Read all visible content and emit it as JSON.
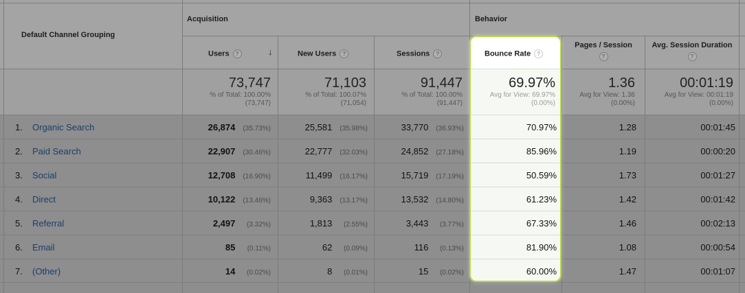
{
  "headers": {
    "dimension": "Default Channel Grouping",
    "acquisition": "Acquisition",
    "behavior": "Behavior",
    "users": "Users",
    "new_users": "New Users",
    "sessions": "Sessions",
    "bounce_rate": "Bounce Rate",
    "pages_session": "Pages / Session",
    "avg_duration": "Avg. Session Duration",
    "help_glyph": "?",
    "sort_glyph": "↓"
  },
  "totals": {
    "users": {
      "value": "73,747",
      "line1": "% of Total: 100.00%",
      "line2": "(73,747)"
    },
    "new_users": {
      "value": "71,103",
      "line1": "% of Total: 100.07%",
      "line2": "(71,054)"
    },
    "sessions": {
      "value": "91,447",
      "line1": "% of Total: 100.00%",
      "line2": "(91,447)"
    },
    "bounce_rate": {
      "value": "69.97%",
      "line1": "Avg for View: 69.97%",
      "line2": "(0.00%)"
    },
    "pages_session": {
      "value": "1.36",
      "line1": "Avg for View: 1.36",
      "line2": "(0.00%)"
    },
    "avg_duration": {
      "value": "00:01:19",
      "line1": "Avg for View: 00:01:19",
      "line2": "(0.00%)"
    }
  },
  "rows": [
    {
      "idx": "1.",
      "channel": "Organic Search",
      "users": "26,874",
      "users_pct": "(35.73%)",
      "new_users": "25,581",
      "new_users_pct": "(35.98%)",
      "sessions": "33,770",
      "sessions_pct": "(36.93%)",
      "bounce": "70.97%",
      "pages": "1.28",
      "duration": "00:01:45"
    },
    {
      "idx": "2.",
      "channel": "Paid Search",
      "users": "22,907",
      "users_pct": "(30.46%)",
      "new_users": "22,777",
      "new_users_pct": "(32.03%)",
      "sessions": "24,852",
      "sessions_pct": "(27.18%)",
      "bounce": "85.96%",
      "pages": "1.19",
      "duration": "00:00:20"
    },
    {
      "idx": "3.",
      "channel": "Social",
      "users": "12,708",
      "users_pct": "(16.90%)",
      "new_users": "11,499",
      "new_users_pct": "(16.17%)",
      "sessions": "15,719",
      "sessions_pct": "(17.19%)",
      "bounce": "50.59%",
      "pages": "1.73",
      "duration": "00:01:27"
    },
    {
      "idx": "4.",
      "channel": "Direct",
      "users": "10,122",
      "users_pct": "(13.46%)",
      "new_users": "9,363",
      "new_users_pct": "(13.17%)",
      "sessions": "13,532",
      "sessions_pct": "(14.80%)",
      "bounce": "61.23%",
      "pages": "1.42",
      "duration": "00:01:42"
    },
    {
      "idx": "5.",
      "channel": "Referral",
      "users": "2,497",
      "users_pct": "(3.32%)",
      "new_users": "1,813",
      "new_users_pct": "(2.55%)",
      "sessions": "3,443",
      "sessions_pct": "(3.77%)",
      "bounce": "67.33%",
      "pages": "1.46",
      "duration": "00:02:13"
    },
    {
      "idx": "6.",
      "channel": "Email",
      "users": "85",
      "users_pct": "(0.11%)",
      "new_users": "62",
      "new_users_pct": "(0.09%)",
      "sessions": "116",
      "sessions_pct": "(0.13%)",
      "bounce": "81.90%",
      "pages": "1.08",
      "duration": "00:00:54"
    },
    {
      "idx": "7.",
      "channel": "(Other)",
      "users": "14",
      "users_pct": "(0.02%)",
      "new_users": "8",
      "new_users_pct": "(0.01%)",
      "sessions": "15",
      "sessions_pct": "(0.02%)",
      "bounce": "60.00%",
      "pages": "1.47",
      "duration": "00:01:07"
    }
  ],
  "colors": {
    "highlight_border": "#b8d94a",
    "link": "#1b3d6a",
    "overlay": "#8f8f8f"
  }
}
